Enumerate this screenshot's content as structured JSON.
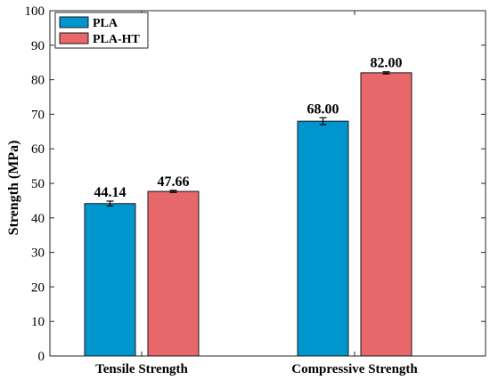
{
  "chart_data": {
    "type": "bar",
    "categories": [
      "Tensile Strength",
      "Compressive Strength"
    ],
    "series": [
      {
        "name": "PLA",
        "color": "#0095CC",
        "values": [
          44.14,
          68.0
        ],
        "errors": [
          0.7,
          1.0
        ],
        "labels": [
          "44.14",
          "68.00"
        ]
      },
      {
        "name": "PLA-HT",
        "color": "#E8676A",
        "values": [
          47.66,
          82.0
        ],
        "errors": [
          0.3,
          0.3
        ],
        "labels": [
          "47.66",
          "82.00"
        ]
      }
    ],
    "xlabel": "",
    "ylabel": "Strength (MPa)",
    "ylim": [
      0,
      100
    ],
    "yticks": [
      0,
      10,
      20,
      30,
      40,
      50,
      60,
      70,
      80,
      90,
      100
    ],
    "grid": false,
    "legend_position": "top-left"
  }
}
